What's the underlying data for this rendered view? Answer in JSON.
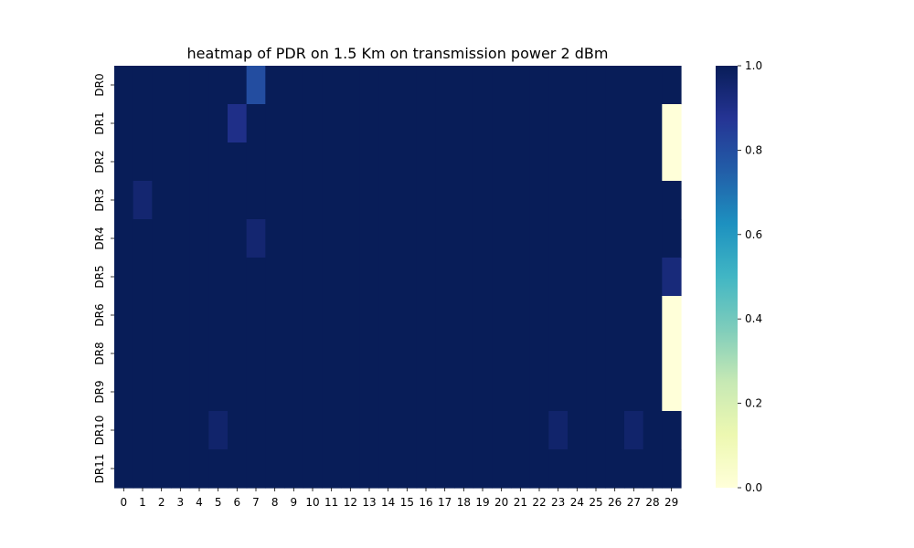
{
  "chart_data": {
    "type": "heatmap",
    "title": "heatmap of PDR on 1.5 Km on transmission power 2 dBm",
    "xlabel": "",
    "ylabel": "",
    "x_categories": [
      "0",
      "1",
      "2",
      "3",
      "4",
      "5",
      "6",
      "7",
      "8",
      "9",
      "10",
      "11",
      "12",
      "13",
      "14",
      "15",
      "16",
      "17",
      "18",
      "19",
      "20",
      "21",
      "22",
      "23",
      "24",
      "25",
      "26",
      "27",
      "28",
      "29"
    ],
    "y_categories": [
      "DR0",
      "DR1",
      "DR2",
      "DR3",
      "DR4",
      "DR5",
      "DR6",
      "DR8",
      "DR9",
      "DR10",
      "DR11"
    ],
    "values": [
      [
        1,
        1,
        1,
        1,
        1,
        1,
        1,
        0.8,
        1,
        1,
        1,
        1,
        1,
        1,
        1,
        1,
        1,
        1,
        1,
        1,
        1,
        1,
        1,
        1,
        1,
        1,
        1,
        1,
        1,
        1
      ],
      [
        1,
        1,
        1,
        1,
        1,
        1,
        0.9,
        1,
        1,
        1,
        1,
        1,
        1,
        1,
        1,
        1,
        1,
        1,
        1,
        1,
        1,
        1,
        1,
        1,
        1,
        1,
        1,
        1,
        1,
        0
      ],
      [
        1,
        1,
        1,
        1,
        1,
        1,
        1,
        1,
        1,
        1,
        1,
        1,
        1,
        1,
        1,
        1,
        1,
        1,
        1,
        1,
        1,
        1,
        1,
        1,
        1,
        1,
        1,
        1,
        1,
        0
      ],
      [
        1,
        0.95,
        1,
        1,
        1,
        1,
        1,
        1,
        1,
        1,
        1,
        1,
        1,
        1,
        1,
        1,
        1,
        1,
        1,
        1,
        1,
        1,
        1,
        1,
        1,
        1,
        1,
        1,
        1,
        1
      ],
      [
        1,
        1,
        1,
        1,
        1,
        1,
        1,
        0.95,
        1,
        1,
        1,
        1,
        1,
        1,
        1,
        1,
        1,
        1,
        1,
        1,
        1,
        1,
        1,
        1,
        1,
        1,
        1,
        1,
        1,
        1
      ],
      [
        1,
        1,
        1,
        1,
        1,
        1,
        1,
        1,
        1,
        1,
        1,
        1,
        1,
        1,
        1,
        1,
        1,
        1,
        1,
        1,
        1,
        1,
        1,
        1,
        1,
        1,
        1,
        1,
        1,
        0.93
      ],
      [
        1,
        1,
        1,
        1,
        1,
        1,
        1,
        1,
        1,
        1,
        1,
        1,
        1,
        1,
        1,
        1,
        1,
        1,
        1,
        1,
        1,
        1,
        1,
        1,
        1,
        1,
        1,
        1,
        1,
        0
      ],
      [
        1,
        1,
        1,
        1,
        1,
        1,
        1,
        1,
        1,
        1,
        1,
        1,
        1,
        1,
        1,
        1,
        1,
        1,
        1,
        1,
        1,
        1,
        1,
        1,
        1,
        1,
        1,
        1,
        1,
        0
      ],
      [
        1,
        1,
        1,
        1,
        1,
        1,
        1,
        1,
        1,
        1,
        1,
        1,
        1,
        1,
        1,
        1,
        1,
        1,
        1,
        1,
        1,
        1,
        1,
        1,
        1,
        1,
        1,
        1,
        1,
        0
      ],
      [
        1,
        1,
        1,
        1,
        1,
        0.96,
        1,
        1,
        1,
        1,
        1,
        1,
        1,
        1,
        1,
        1,
        1,
        1,
        1,
        1,
        1,
        1,
        1,
        0.96,
        1,
        1,
        1,
        0.96,
        1,
        1
      ],
      [
        1,
        1,
        1,
        1,
        1,
        1,
        1,
        1,
        1,
        1,
        1,
        1,
        1,
        1,
        1,
        1,
        1,
        1,
        1,
        1,
        1,
        1,
        1,
        1,
        1,
        1,
        1,
        1,
        1,
        1
      ]
    ],
    "colorbar": {
      "colormap": "YlGnBu",
      "vmin": 0,
      "vmax": 1,
      "ticks": [
        "0.0",
        "0.2",
        "0.4",
        "0.6",
        "0.8",
        "1.0"
      ],
      "tick_values": [
        0,
        0.2,
        0.4,
        0.6,
        0.8,
        1.0
      ]
    },
    "grid": false,
    "legend": "none"
  }
}
